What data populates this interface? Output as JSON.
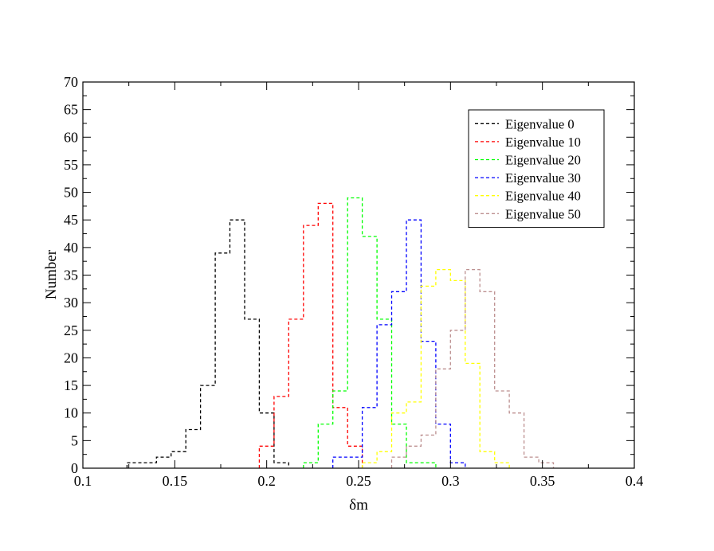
{
  "chart_data": {
    "type": "line",
    "style": "step-histogram",
    "xlabel": "δm",
    "ylabel": "Number",
    "xlim": [
      0.1,
      0.4
    ],
    "ylim": [
      0,
      70
    ],
    "x_ticks": [
      "0.1",
      "0.15",
      "0.2",
      "0.25",
      "0.3",
      "0.35",
      "0.4"
    ],
    "y_ticks": [
      "0",
      "5",
      "10",
      "15",
      "20",
      "25",
      "30",
      "35",
      "40",
      "45",
      "50",
      "55",
      "60",
      "65",
      "70"
    ],
    "grid": false,
    "legend_position": "top-right",
    "series": [
      {
        "name": "Eigenvalue 0",
        "color": "#000000",
        "edges": [
          0.124,
          0.132,
          0.14,
          0.148,
          0.156,
          0.164,
          0.172,
          0.18,
          0.188,
          0.196,
          0.204,
          0.212
        ],
        "counts": [
          1,
          1,
          2,
          3,
          7,
          15,
          39,
          45,
          27,
          10,
          1
        ]
      },
      {
        "name": "Eigenvalue 10",
        "color": "#ff0000",
        "edges": [
          0.196,
          0.204,
          0.212,
          0.22,
          0.228,
          0.236,
          0.244,
          0.252
        ],
        "counts": [
          4,
          13,
          27,
          44,
          48,
          11,
          4
        ]
      },
      {
        "name": "Eigenvalue 20",
        "color": "#00ff00",
        "edges": [
          0.22,
          0.228,
          0.236,
          0.244,
          0.252,
          0.26,
          0.268,
          0.276,
          0.284,
          0.292
        ],
        "counts": [
          1,
          8,
          14,
          49,
          42,
          27,
          8,
          1,
          1
        ]
      },
      {
        "name": "Eigenvalue 30",
        "color": "#0000ff",
        "edges": [
          0.236,
          0.244,
          0.252,
          0.26,
          0.268,
          0.276,
          0.284,
          0.292,
          0.3,
          0.308
        ],
        "counts": [
          2,
          2,
          11,
          26,
          32,
          45,
          23,
          8,
          1
        ]
      },
      {
        "name": "Eigenvalue 40",
        "color": "#ffff00",
        "edges": [
          0.252,
          0.26,
          0.268,
          0.276,
          0.284,
          0.292,
          0.3,
          0.308,
          0.316,
          0.324,
          0.332
        ],
        "counts": [
          1,
          3,
          10,
          12,
          33,
          36,
          34,
          19,
          3,
          1
        ]
      },
      {
        "name": "Eigenvalue 50",
        "color": "#bc8f8f",
        "edges": [
          0.268,
          0.276,
          0.284,
          0.292,
          0.3,
          0.308,
          0.316,
          0.324,
          0.332,
          0.34,
          0.348,
          0.356
        ],
        "counts": [
          2,
          4,
          6,
          18,
          25,
          36,
          32,
          14,
          10,
          2,
          1
        ]
      }
    ]
  }
}
